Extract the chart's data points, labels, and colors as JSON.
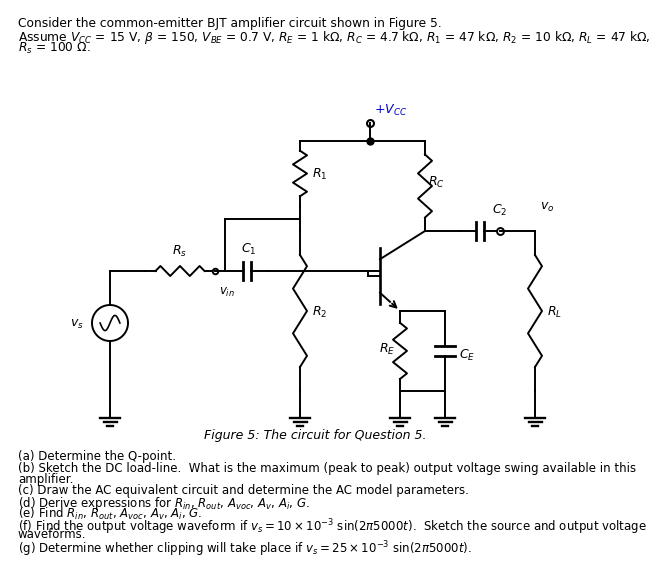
{
  "bg_color": "#ffffff",
  "title": "Consider the common-emitter BJT amplifier circuit shown in Figure 5.",
  "param1": "Assume $V_{CC}$ = 15 V, $\\beta$ = 150, $V_{BE}$ = 0.7 V, $R_E$ = 1 k$\\Omega$, $R_C$ = 4.7 k$\\Omega$, $R_1$ = 47 k$\\Omega$, $R_2$ = 10 k$\\Omega$, $R_L$ = 47 k$\\Omega$,",
  "param2": "$R_s$ = 100 $\\Omega$.",
  "caption": "Figure 5: The circuit for Question 5.",
  "q_a": "(a) Determine the Q-point.",
  "q_b": "(b) Sketch the DC load-line.  What is the maximum (peak to peak) output voltage swing available in this",
  "q_b2": "amplifier.",
  "q_c": "(c) Draw the AC equivalent circuit and determine the AC model parameters.",
  "q_d": "(d) Derive expressions for $R_{in}$, $R_{out}$, $A_{voc}$, $A_v$, $A_i$, $G$.",
  "q_e": "(e) Find $R_{in}$, $R_{out}$, $A_{voc}$, $A_v$, $A_i$, $G$.",
  "q_f": "(f) Find the output voltage waveform if $v_s = 10 \\times 10^{-3}$ sin(2$\\pi$5000$t$).  Sketch the source and output voltage",
  "q_f2": "waveforms.",
  "q_g": "(g) Determine whether clipping will take place if $v_s = 25 \\times 10^{-3}$ sin(2$\\pi$5000$t$)."
}
